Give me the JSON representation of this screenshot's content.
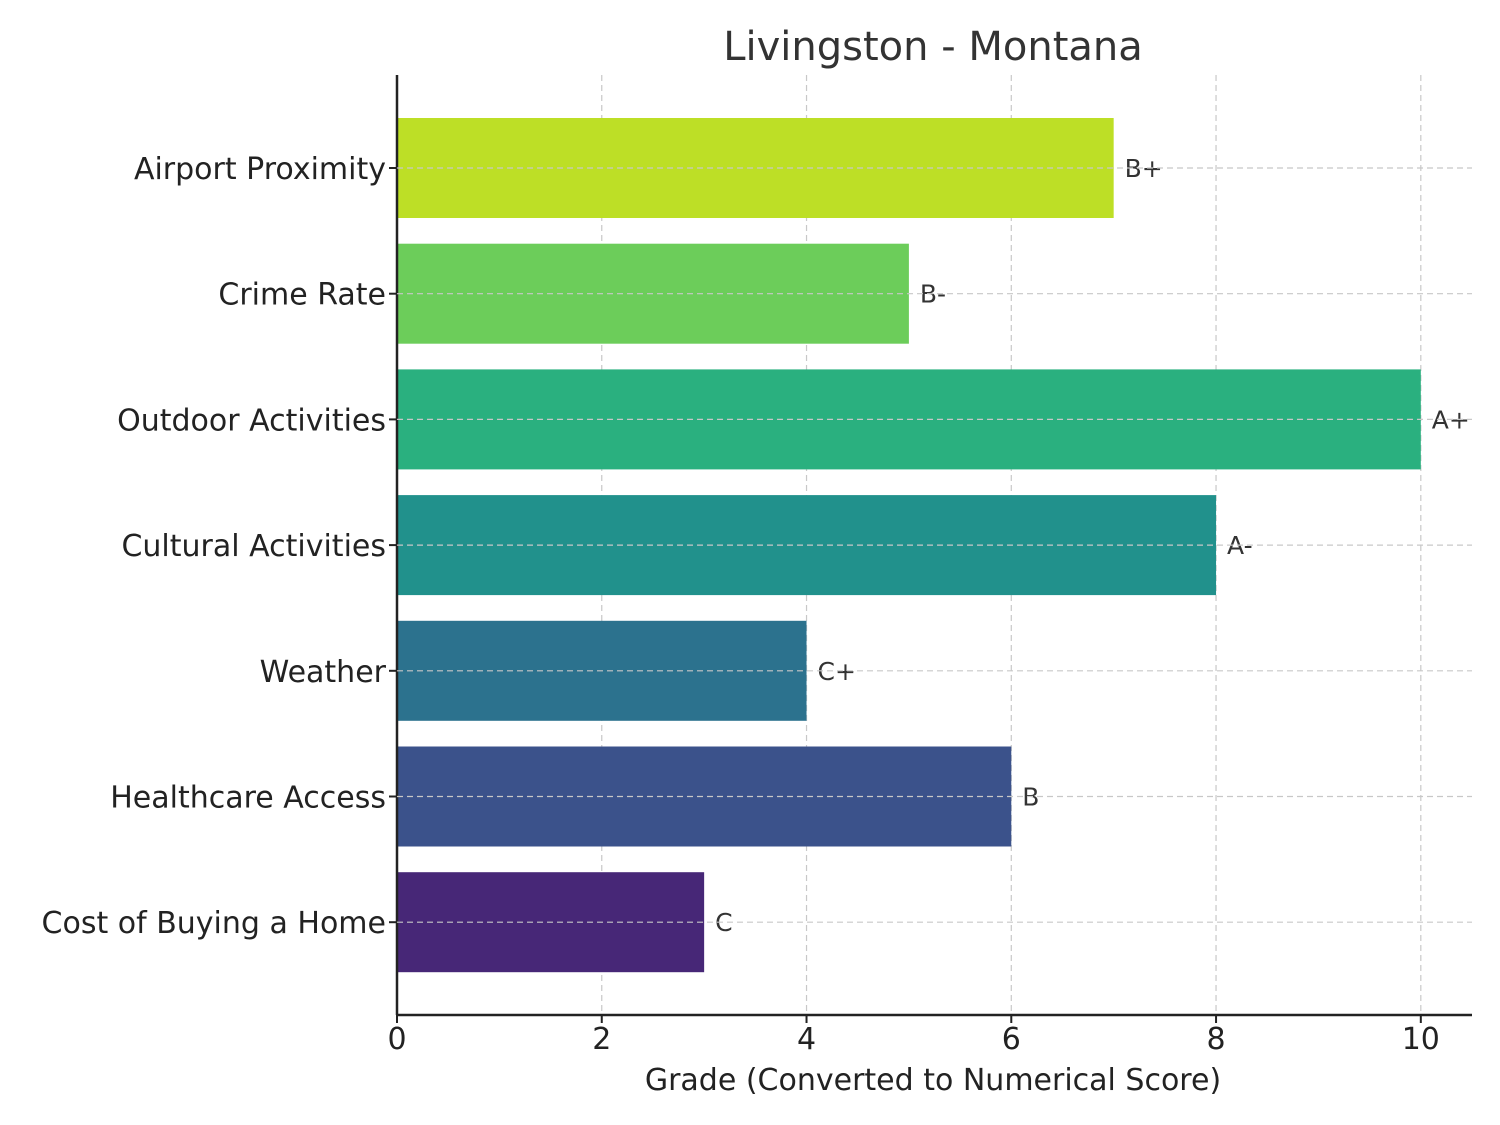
{
  "chart_data": {
    "type": "bar",
    "orientation": "horizontal",
    "title": "Livingston - Montana",
    "xlabel": "Grade (Converted to Numerical Score)",
    "ylabel": "",
    "xlim": [
      0,
      10.5
    ],
    "xticks": [
      0,
      2,
      4,
      6,
      8,
      10
    ],
    "grid": true,
    "categories": [
      "Airport Proximity",
      "Crime Rate",
      "Outdoor Activities",
      "Cultural Activities",
      "Weather",
      "Healthcare Access",
      "Cost of Buying a Home"
    ],
    "values": [
      7,
      5,
      10,
      8,
      4,
      6,
      3
    ],
    "grades": [
      "B+",
      "B-",
      "A+",
      "A-",
      "C+",
      "B",
      "C"
    ],
    "colors": [
      "#bddf26",
      "#6ccd5a",
      "#2ab07f",
      "#21918c",
      "#2c728e",
      "#3b528b",
      "#472777"
    ]
  }
}
